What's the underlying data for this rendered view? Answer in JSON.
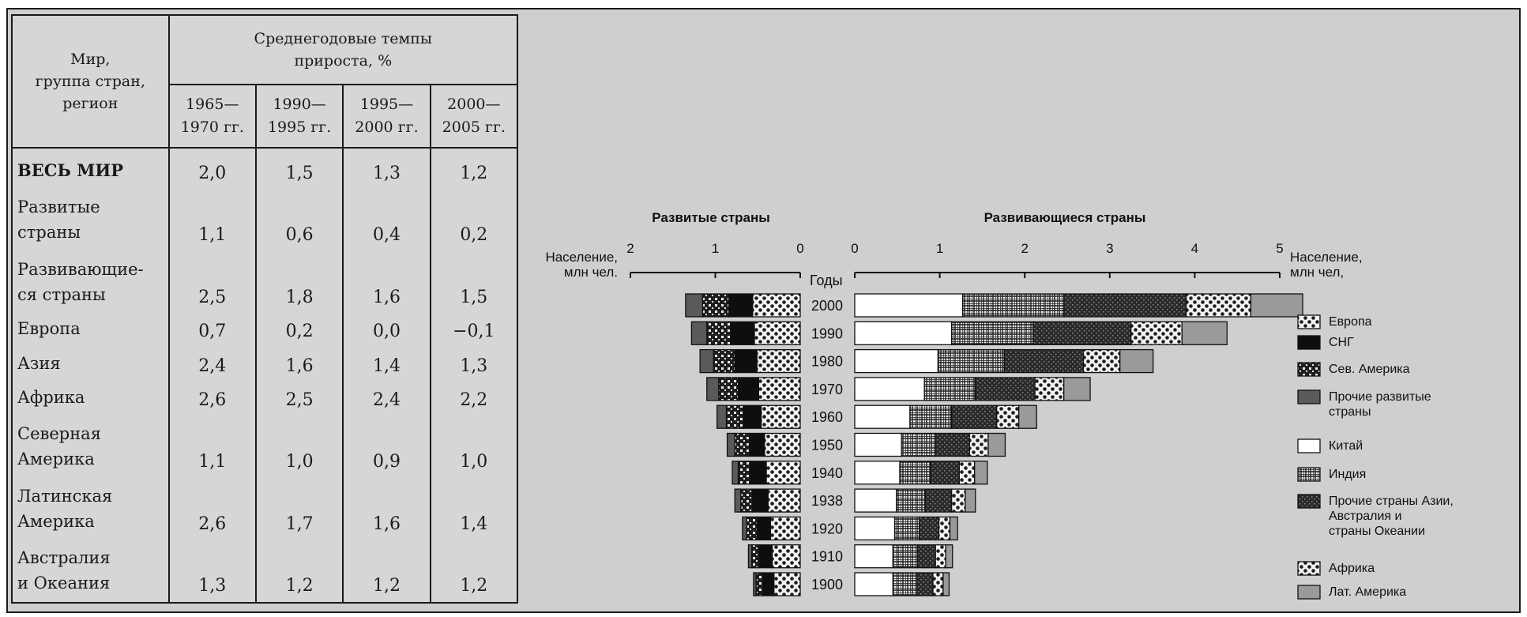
{
  "table": {
    "region_header_lines": [
      "Мир,",
      "группа стран,",
      "регион"
    ],
    "rates_header_lines": [
      "Среднегодовые темпы",
      "прироста, %"
    ],
    "periods": [
      {
        "line1": "1965—",
        "line2": "1970 гг."
      },
      {
        "line1": "1990—",
        "line2": "1995 гг."
      },
      {
        "line1": "1995—",
        "line2": "2000 гг."
      },
      {
        "line1": "2000—",
        "line2": "2005 гг."
      }
    ],
    "rows": [
      {
        "lines": [
          "ВЕСЬ МИР"
        ],
        "values": [
          "2,0",
          "1,5",
          "1,3",
          "1,2"
        ],
        "bold": true
      },
      {
        "lines": [
          "Развитые",
          "страны"
        ],
        "values": [
          "1,1",
          "0,6",
          "0,4",
          "0,2"
        ]
      },
      {
        "lines": [
          "Развивающие-",
          "ся страны"
        ],
        "values": [
          "2,5",
          "1,8",
          "1,6",
          "1,5"
        ]
      },
      {
        "lines": [
          "Европа"
        ],
        "values": [
          "0,7",
          "0,2",
          "0,0",
          "−0,1"
        ]
      },
      {
        "lines": [
          "Азия"
        ],
        "values": [
          "2,4",
          "1,6",
          "1,4",
          "1,3"
        ]
      },
      {
        "lines": [
          "Африка"
        ],
        "values": [
          "2,6",
          "2,5",
          "2,4",
          "2,2"
        ]
      },
      {
        "lines": [
          "Северная",
          "Америка"
        ],
        "values": [
          "1,1",
          "1,0",
          "0,9",
          "1,0"
        ]
      },
      {
        "lines": [
          "Латинская",
          "Америка"
        ],
        "values": [
          "2,6",
          "1,7",
          "1,6",
          "1,4"
        ]
      },
      {
        "lines": [
          "Австралия",
          "и Океания"
        ],
        "values": [
          "1,3",
          "1,2",
          "1,2",
          "1,2"
        ]
      }
    ]
  },
  "chart_data": {
    "type": "bar",
    "orientation": "horizontal-stacked-back-to-back",
    "left_title": "Развитые страны",
    "right_title": "Развивающиеся страны",
    "years_label": "Годы",
    "left_axis_label": [
      "Население,",
      "млн чел."
    ],
    "right_axis_label": [
      "Население,",
      "млн чел,"
    ],
    "left_ticks": [
      "2",
      "1",
      "0"
    ],
    "right_ticks": [
      "0",
      "1",
      "2",
      "3",
      "4",
      "5"
    ],
    "left_xlim": [
      2,
      0
    ],
    "right_xlim": [
      0,
      5
    ],
    "years": [
      "2000",
      "1990",
      "1980",
      "1970",
      "1960",
      "1950",
      "1940",
      "1938",
      "1920",
      "1910",
      "1900"
    ],
    "developed_series": [
      {
        "name": "Европа",
        "pattern": "checker-light",
        "values": [
          0.56,
          0.54,
          0.51,
          0.49,
          0.46,
          0.42,
          0.4,
          0.38,
          0.35,
          0.33,
          0.31
        ]
      },
      {
        "name": "СНГ",
        "pattern": "solid-black",
        "values": [
          0.28,
          0.28,
          0.26,
          0.24,
          0.21,
          0.18,
          0.19,
          0.18,
          0.16,
          0.15,
          0.13
        ]
      },
      {
        "name": "Сев. Америка",
        "pattern": "checker-dark",
        "values": [
          0.31,
          0.28,
          0.25,
          0.23,
          0.2,
          0.17,
          0.14,
          0.14,
          0.12,
          0.09,
          0.08
        ]
      },
      {
        "name": "Прочие развитые страны",
        "pattern": "solid-dark-gray",
        "values": [
          0.2,
          0.18,
          0.16,
          0.14,
          0.11,
          0.09,
          0.07,
          0.07,
          0.05,
          0.04,
          0.03
        ]
      }
    ],
    "developing_series": [
      {
        "name": "Китай",
        "pattern": "white",
        "values": [
          1.27,
          1.14,
          0.98,
          0.82,
          0.65,
          0.55,
          0.53,
          0.49,
          0.47,
          0.45,
          0.45
        ]
      },
      {
        "name": "Индия",
        "pattern": "grid",
        "values": [
          1.19,
          0.96,
          0.78,
          0.6,
          0.49,
          0.4,
          0.36,
          0.34,
          0.29,
          0.29,
          0.28
        ]
      },
      {
        "name": "Прочие страны Азии, Австралия и страны Океании",
        "pattern": "dense-dark",
        "values": [
          1.44,
          1.15,
          0.93,
          0.7,
          0.53,
          0.4,
          0.34,
          0.31,
          0.23,
          0.21,
          0.19
        ]
      },
      {
        "name": "Африка",
        "pattern": "checker-light",
        "values": [
          0.76,
          0.6,
          0.43,
          0.34,
          0.26,
          0.22,
          0.18,
          0.16,
          0.13,
          0.12,
          0.12
        ]
      },
      {
        "name": "Лат. Америка",
        "pattern": "solid-light-gray",
        "values": [
          0.61,
          0.53,
          0.39,
          0.31,
          0.21,
          0.2,
          0.15,
          0.12,
          0.09,
          0.08,
          0.07
        ]
      }
    ],
    "legend": [
      {
        "label": "Европа",
        "pattern": "checker-light"
      },
      {
        "label": "СНГ",
        "pattern": "solid-black"
      },
      {
        "label": "Сев. Америка",
        "pattern": "checker-dark"
      },
      {
        "label": "Прочие развитые страны",
        "pattern": "solid-dark-gray"
      },
      {
        "label": "Китай",
        "pattern": "white"
      },
      {
        "label": "Индия",
        "pattern": "grid"
      },
      {
        "label": "Прочие страны Азии, Австралия и страны Океании",
        "pattern": "dense-dark"
      },
      {
        "label": "Африка",
        "pattern": "checker-light"
      },
      {
        "label": "Лат. Америка",
        "pattern": "solid-light-gray"
      }
    ]
  }
}
